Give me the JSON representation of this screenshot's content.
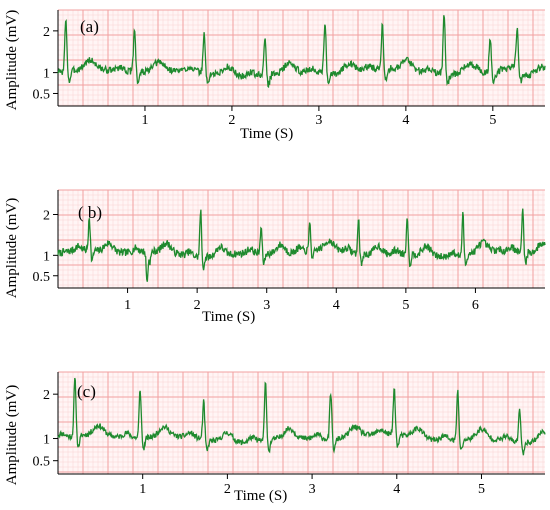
{
  "chart_data": [
    {
      "type": "line",
      "title": "(a)",
      "xlabel": "Time (S)",
      "ylabel": "Amplitude (mV)",
      "xlim": [
        0,
        5.6
      ],
      "ylim": [
        0.2,
        2.5
      ],
      "xticks": [
        "1",
        "2",
        "3",
        "4",
        "5"
      ],
      "yticks": [
        "0.5",
        "1",
        "2"
      ],
      "grid": true,
      "line_color": "#1f8a2e",
      "grid_major_color": "#f2a0a0",
      "grid_minor_color": "#f9d2d2",
      "beats": [
        0.09,
        0.88,
        1.68,
        2.38,
        3.07,
        3.73,
        4.44,
        4.97,
        5.28
      ],
      "beat_peaks": [
        2.2,
        2.05,
        1.95,
        1.9,
        2.15,
        2.05,
        2.4,
        1.85,
        1.9
      ],
      "baseline": 1.0,
      "noise": 0.08,
      "seed": 3
    },
    {
      "type": "line",
      "title": "( b)",
      "xlabel": "Time (S)",
      "ylabel": "Amplitude (mV)",
      "xlim": [
        0,
        7
      ],
      "ylim": [
        0.2,
        2.6
      ],
      "xticks": [
        "1",
        "2",
        "3",
        "4",
        "5",
        "6"
      ],
      "yticks": [
        "0.5",
        "1",
        "2"
      ],
      "grid": true,
      "line_color": "#1f8a2e",
      "grid_major_color": "#f2a0a0",
      "grid_minor_color": "#f9d2d2",
      "beats": [
        0.45,
        1.28,
        2.05,
        2.92,
        3.62,
        4.32,
        5.02,
        5.82,
        6.68
      ],
      "beat_peaks": [
        1.9,
        0.3,
        2.2,
        1.7,
        1.75,
        1.9,
        2.0,
        2.05,
        2.1
      ],
      "baseline": 1.05,
      "noise": 0.09,
      "seed": 7
    },
    {
      "type": "line",
      "title": "(c)",
      "xlabel": "Time (S)",
      "ylabel": "Amplitude (mV)",
      "xlim": [
        0,
        5.75
      ],
      "ylim": [
        0.2,
        2.5
      ],
      "xticks": [
        "1",
        "2",
        "3",
        "4",
        "5"
      ],
      "yticks": [
        "0.5",
        "1",
        "2"
      ],
      "grid": true,
      "line_color": "#1f8a2e",
      "grid_major_color": "#f2a0a0",
      "grid_minor_color": "#f9d2d2",
      "beats": [
        0.2,
        0.97,
        1.72,
        2.45,
        3.22,
        3.97,
        4.72,
        5.45
      ],
      "beat_peaks": [
        2.3,
        2.1,
        1.85,
        2.3,
        2.05,
        2.05,
        2.1,
        1.75
      ],
      "baseline": 1.0,
      "noise": 0.06,
      "seed": 11
    }
  ]
}
